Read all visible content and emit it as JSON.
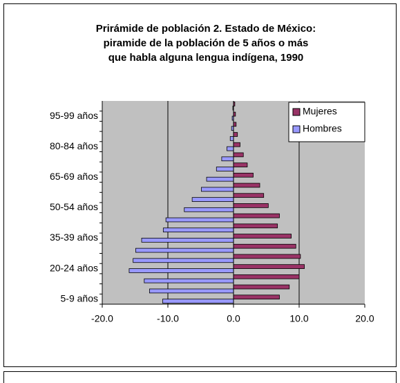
{
  "chart_data": {
    "type": "pyramid",
    "title": [
      "Prirámide de población 2. Estado de México:",
      "piramide de la población de 5 años o más",
      "que habla alguna lengua indígena, 1990"
    ],
    "categories": [
      "5-9 años",
      null,
      null,
      "20-24 años",
      null,
      null,
      "35-39 años",
      null,
      null,
      "50-54 años",
      null,
      null,
      "65-69 años",
      null,
      null,
      "80-84 años",
      null,
      null,
      "95-99 años",
      null
    ],
    "series": [
      {
        "name": "Mujeres",
        "color": "#993366",
        "values": [
          7.0,
          8.5,
          10.0,
          10.8,
          10.2,
          9.5,
          8.8,
          6.7,
          7.0,
          5.3,
          4.6,
          4.0,
          3.0,
          2.1,
          1.5,
          1.0,
          0.6,
          0.4,
          0.3,
          0.2
        ]
      },
      {
        "name": "Hombres",
        "color": "#9999ff",
        "values": [
          -10.8,
          -12.8,
          -13.6,
          -15.9,
          -15.3,
          -14.9,
          -14.0,
          -10.7,
          -10.3,
          -7.5,
          -6.3,
          -4.9,
          -4.1,
          -2.6,
          -1.8,
          -1.0,
          -0.5,
          -0.3,
          -0.2,
          -0.1
        ]
      }
    ],
    "xlim": [
      -20,
      20
    ],
    "xticks": [
      {
        "value": -20,
        "label": "-20.0"
      },
      {
        "value": -10,
        "label": "-10.0"
      },
      {
        "value": 0,
        "label": "0.0"
      },
      {
        "value": 10,
        "label": "10.0"
      },
      {
        "value": 20,
        "label": "20.0"
      }
    ],
    "grid": true,
    "legend": "top-right"
  }
}
